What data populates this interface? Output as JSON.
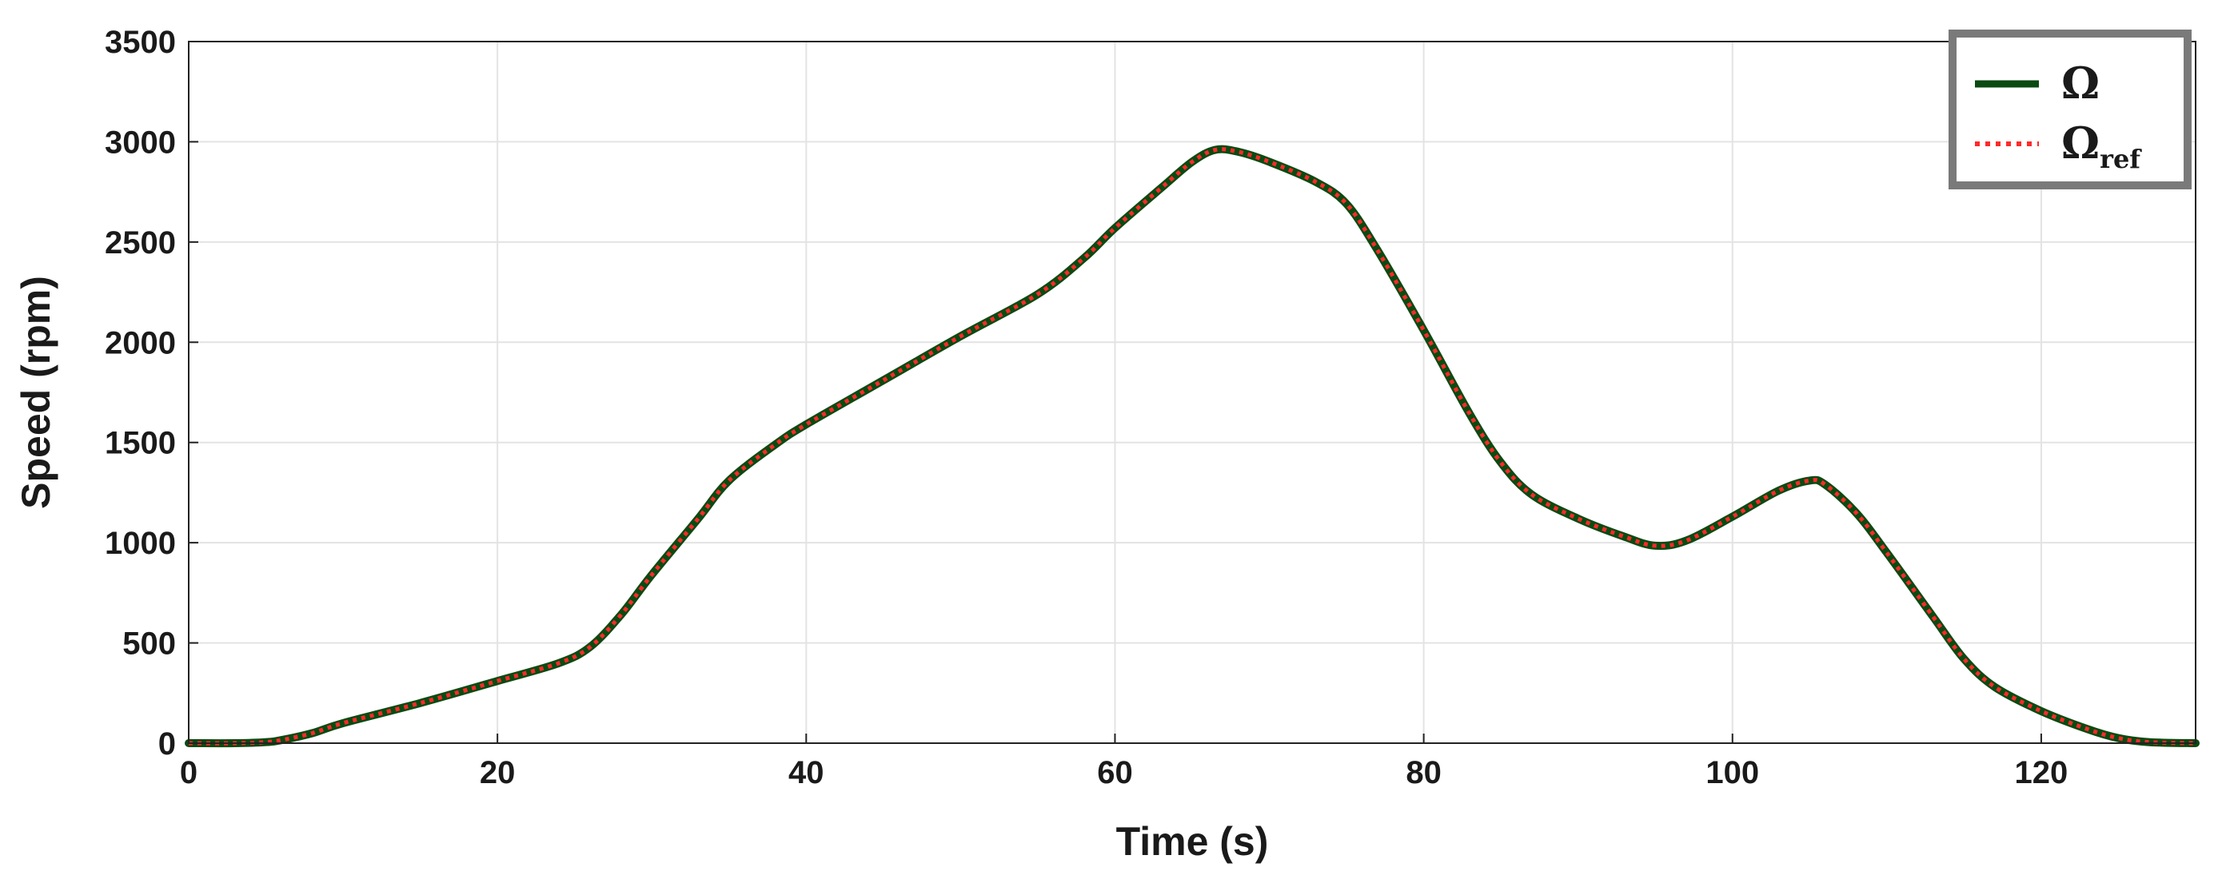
{
  "chart_data": {
    "type": "line",
    "title": "",
    "xlabel": "Time (s)",
    "ylabel": "Speed (rpm)",
    "xlim": [
      0,
      130
    ],
    "ylim": [
      0,
      3500
    ],
    "xticks": [
      0,
      20,
      40,
      60,
      80,
      100,
      120
    ],
    "yticks": [
      0,
      500,
      1000,
      1500,
      2000,
      2500,
      3000,
      3500
    ],
    "grid": true,
    "legend_position": "top-right",
    "series": [
      {
        "name": "Ω",
        "color": "#0b4a12",
        "style": "solid",
        "x": [
          0,
          3,
          5,
          6,
          8,
          10,
          15,
          20,
          24,
          26,
          28,
          30,
          33,
          35,
          38,
          40,
          45,
          50,
          55,
          58,
          60,
          63,
          65,
          66.5,
          68,
          70,
          73,
          75,
          77,
          80,
          83,
          85,
          87,
          90,
          93,
          95,
          97,
          100,
          103,
          105,
          106,
          108,
          110,
          113,
          115,
          117,
          120,
          123,
          125,
          127,
          130
        ],
        "y": [
          0,
          0,
          5,
          15,
          50,
          100,
          200,
          310,
          400,
          480,
          640,
          840,
          1120,
          1310,
          1490,
          1590,
          1810,
          2030,
          2240,
          2420,
          2570,
          2770,
          2900,
          2960,
          2950,
          2900,
          2800,
          2690,
          2460,
          2060,
          1640,
          1400,
          1240,
          1120,
          1030,
          985,
          1010,
          1130,
          1260,
          1310,
          1290,
          1150,
          950,
          630,
          420,
          280,
          160,
          70,
          25,
          5,
          0
        ]
      },
      {
        "name": "Ω",
        "subscript": "ref",
        "color": "#ff2a2a",
        "style": "dotted",
        "x": [
          0,
          3,
          5,
          6,
          8,
          10,
          15,
          20,
          24,
          26,
          28,
          30,
          33,
          35,
          38,
          40,
          45,
          50,
          55,
          58,
          60,
          63,
          65,
          66.5,
          68,
          70,
          73,
          75,
          77,
          80,
          83,
          85,
          87,
          90,
          93,
          95,
          97,
          100,
          103,
          105,
          106,
          108,
          110,
          113,
          115,
          117,
          120,
          123,
          125,
          127,
          130
        ],
        "y": [
          0,
          0,
          5,
          15,
          50,
          100,
          200,
          310,
          400,
          480,
          640,
          840,
          1120,
          1310,
          1490,
          1590,
          1810,
          2030,
          2240,
          2420,
          2570,
          2770,
          2900,
          2960,
          2950,
          2900,
          2800,
          2690,
          2460,
          2060,
          1640,
          1400,
          1240,
          1120,
          1030,
          985,
          1010,
          1130,
          1260,
          1310,
          1290,
          1150,
          950,
          630,
          420,
          280,
          160,
          70,
          25,
          5,
          0
        ]
      }
    ]
  }
}
